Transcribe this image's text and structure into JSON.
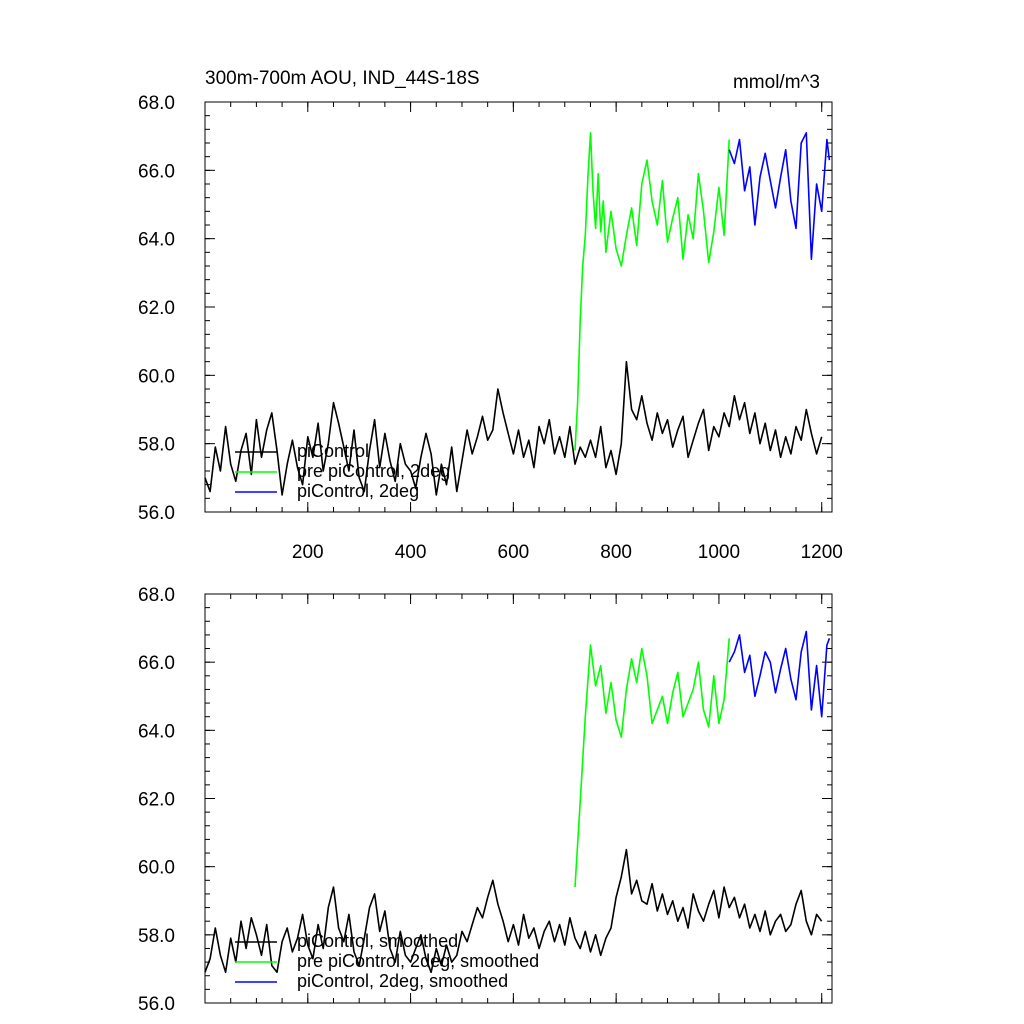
{
  "chart_data": [
    {
      "type": "line",
      "title": "300m-700m AOU, IND_44S-18S",
      "units": "mmol/m^3",
      "xlabel": "",
      "ylabel": "",
      "xlim": [
        0,
        1220
      ],
      "ylim": [
        56.0,
        68.0
      ],
      "xticks": [
        200,
        400,
        600,
        800,
        1000,
        1200
      ],
      "xtick_labels": [
        "200",
        "400",
        "600",
        "800",
        "1000",
        "1200"
      ],
      "yticks": [
        56.0,
        58.0,
        60.0,
        62.0,
        64.0,
        66.0,
        68.0
      ],
      "ytick_labels": [
        "56.0",
        "58.0",
        "60.0",
        "62.0",
        "64.0",
        "66.0",
        "68.0"
      ],
      "legend_position": "bottom-left",
      "grid": false,
      "series": [
        {
          "name": "piControl",
          "color": "#000000",
          "x": [
            0,
            10,
            20,
            30,
            40,
            50,
            60,
            70,
            80,
            90,
            100,
            110,
            120,
            130,
            140,
            150,
            160,
            170,
            180,
            190,
            200,
            210,
            220,
            230,
            240,
            250,
            260,
            270,
            280,
            290,
            300,
            310,
            320,
            330,
            340,
            350,
            360,
            370,
            380,
            390,
            400,
            410,
            420,
            430,
            440,
            450,
            460,
            470,
            480,
            490,
            500,
            510,
            520,
            530,
            540,
            550,
            560,
            570,
            580,
            590,
            600,
            610,
            620,
            630,
            640,
            650,
            660,
            670,
            680,
            690,
            700,
            710,
            720,
            730,
            740,
            750,
            760,
            770,
            780,
            790,
            800,
            810,
            820,
            830,
            840,
            850,
            860,
            870,
            880,
            890,
            900,
            910,
            920,
            930,
            940,
            950,
            960,
            970,
            980,
            990,
            1000,
            1010,
            1020,
            1030,
            1040,
            1050,
            1060,
            1070,
            1080,
            1090,
            1100,
            1110,
            1120,
            1130,
            1140,
            1150,
            1160,
            1170,
            1180,
            1190,
            1200
          ],
          "y": [
            57.0,
            56.6,
            57.9,
            57.2,
            58.5,
            57.4,
            56.9,
            57.8,
            58.3,
            57.1,
            58.7,
            57.6,
            58.4,
            58.9,
            57.8,
            56.5,
            57.4,
            58.1,
            57.3,
            56.8,
            58.2,
            57.6,
            58.6,
            57.2,
            58.0,
            59.2,
            58.6,
            57.9,
            57.2,
            58.4,
            57.0,
            56.6,
            57.8,
            58.7,
            57.3,
            58.3,
            57.5,
            56.9,
            58.0,
            57.4,
            57.2,
            56.7,
            57.6,
            58.3,
            57.7,
            56.5,
            57.4,
            56.8,
            57.9,
            56.6,
            57.5,
            58.4,
            57.7,
            58.2,
            58.8,
            58.1,
            58.4,
            59.6,
            58.9,
            58.3,
            57.7,
            58.4,
            57.6,
            58.1,
            57.3,
            58.5,
            58.0,
            58.7,
            57.7,
            58.2,
            57.6,
            58.5,
            57.4,
            57.9,
            57.6,
            58.1,
            57.6,
            58.5,
            57.3,
            57.8,
            57.1,
            58.0,
            60.4,
            59.0,
            58.7,
            59.4,
            58.6,
            58.1,
            58.9,
            58.3,
            58.7,
            57.9,
            58.4,
            58.8,
            57.6,
            58.1,
            58.6,
            59.0,
            57.8,
            58.5,
            58.2,
            58.9,
            58.5,
            59.4,
            58.7,
            59.2,
            58.3,
            58.9,
            58.0,
            58.6,
            57.8,
            58.4,
            57.6,
            58.2,
            57.7,
            58.5,
            58.1,
            59.0,
            58.3,
            57.7,
            58.2
          ]
        },
        {
          "name": "pre piControl, 2deg",
          "color": "#00ff00",
          "x": [
            720,
            725,
            730,
            735,
            740,
            745,
            750,
            755,
            760,
            765,
            770,
            775,
            780,
            790,
            800,
            810,
            820,
            830,
            840,
            850,
            860,
            870,
            880,
            890,
            900,
            910,
            920,
            930,
            940,
            950,
            960,
            970,
            980,
            990,
            1000,
            1010,
            1020
          ],
          "y": [
            57.8,
            59.2,
            61.6,
            63.2,
            64.1,
            65.8,
            67.1,
            65.4,
            64.3,
            65.9,
            64.2,
            65.1,
            63.6,
            64.8,
            63.7,
            63.2,
            64.1,
            64.9,
            63.8,
            65.6,
            66.3,
            65.1,
            64.4,
            65.7,
            63.9,
            64.6,
            65.2,
            63.4,
            64.7,
            64.0,
            65.9,
            64.8,
            63.3,
            64.2,
            65.5,
            64.1,
            66.9
          ]
        },
        {
          "name": "piControl, 2deg",
          "color": "#0000ff",
          "x": [
            1020,
            1030,
            1040,
            1050,
            1060,
            1070,
            1080,
            1090,
            1100,
            1110,
            1120,
            1130,
            1140,
            1150,
            1160,
            1170,
            1180,
            1190,
            1200,
            1210,
            1215
          ],
          "y": [
            66.6,
            66.2,
            66.9,
            65.4,
            66.1,
            64.4,
            65.8,
            66.5,
            65.7,
            64.9,
            65.8,
            66.6,
            65.1,
            64.3,
            66.8,
            67.1,
            63.4,
            65.6,
            64.8,
            66.9,
            66.3
          ]
        }
      ]
    },
    {
      "type": "line",
      "title": "",
      "xlabel": "",
      "ylabel": "",
      "xlim": [
        0,
        1220
      ],
      "ylim": [
        56.0,
        68.0
      ],
      "xticks": [
        200,
        400,
        600,
        800,
        1000,
        1200
      ],
      "yticks": [
        56.0,
        58.0,
        60.0,
        62.0,
        64.0,
        66.0,
        68.0
      ],
      "ytick_labels": [
        "56.0",
        "58.0",
        "60.0",
        "62.0",
        "64.0",
        "66.0",
        "68.0"
      ],
      "legend_position": "bottom-left",
      "grid": false,
      "series": [
        {
          "name": "piControl, smoothed",
          "color": "#000000",
          "x": [
            0,
            10,
            20,
            30,
            40,
            50,
            60,
            70,
            80,
            90,
            100,
            110,
            120,
            130,
            140,
            150,
            160,
            170,
            180,
            190,
            200,
            210,
            220,
            230,
            240,
            250,
            260,
            270,
            280,
            290,
            300,
            310,
            320,
            330,
            340,
            350,
            360,
            370,
            380,
            390,
            400,
            410,
            420,
            430,
            440,
            450,
            460,
            470,
            480,
            490,
            500,
            510,
            520,
            530,
            540,
            550,
            560,
            570,
            580,
            590,
            600,
            610,
            620,
            630,
            640,
            650,
            660,
            670,
            680,
            690,
            700,
            710,
            720,
            730,
            740,
            750,
            760,
            770,
            780,
            790,
            800,
            810,
            820,
            830,
            840,
            850,
            860,
            870,
            880,
            890,
            900,
            910,
            920,
            930,
            940,
            950,
            960,
            970,
            980,
            990,
            1000,
            1010,
            1020,
            1030,
            1040,
            1050,
            1060,
            1070,
            1080,
            1090,
            1100,
            1110,
            1120,
            1130,
            1140,
            1150,
            1160,
            1170,
            1180,
            1190,
            1200
          ],
          "y": [
            56.9,
            57.3,
            58.2,
            57.4,
            56.9,
            57.9,
            57.2,
            58.4,
            57.6,
            58.5,
            58.0,
            57.4,
            58.3,
            57.1,
            56.9,
            57.8,
            58.2,
            57.5,
            57.9,
            58.6,
            57.7,
            57.3,
            58.3,
            57.6,
            58.8,
            59.4,
            58.2,
            57.8,
            58.6,
            57.5,
            57.1,
            57.9,
            58.8,
            59.2,
            58.1,
            58.7,
            57.6,
            57.2,
            58.1,
            57.4,
            57.2,
            57.6,
            58.0,
            57.3,
            56.9,
            57.6,
            57.1,
            57.7,
            57.2,
            57.4,
            58.1,
            57.8,
            58.3,
            58.8,
            58.5,
            59.1,
            59.6,
            58.9,
            58.4,
            57.8,
            58.3,
            57.7,
            58.6,
            57.9,
            58.2,
            57.6,
            58.1,
            58.4,
            57.8,
            58.3,
            57.7,
            58.5,
            57.9,
            57.6,
            58.1,
            57.5,
            58.0,
            57.4,
            57.9,
            58.2,
            59.1,
            59.7,
            60.5,
            59.2,
            59.6,
            59.0,
            58.9,
            59.5,
            58.7,
            59.2,
            58.6,
            59.0,
            58.4,
            58.8,
            58.2,
            59.2,
            58.7,
            58.4,
            58.9,
            59.3,
            58.5,
            59.4,
            58.8,
            59.1,
            58.5,
            58.9,
            58.2,
            58.6,
            58.1,
            58.7,
            58.0,
            58.4,
            58.6,
            58.1,
            58.3,
            58.9,
            59.3,
            58.4,
            58.0,
            58.6,
            58.4
          ]
        },
        {
          "name": "pre piControl, 2deg, smoothed",
          "color": "#00ff00",
          "x": [
            720,
            730,
            740,
            750,
            760,
            770,
            780,
            790,
            800,
            810,
            820,
            830,
            840,
            850,
            860,
            870,
            880,
            890,
            900,
            910,
            920,
            930,
            940,
            950,
            960,
            970,
            980,
            990,
            1000,
            1010,
            1020
          ],
          "y": [
            59.4,
            61.9,
            64.4,
            66.5,
            65.3,
            65.9,
            64.5,
            65.4,
            64.3,
            63.8,
            65.2,
            66.1,
            65.4,
            66.4,
            65.6,
            64.2,
            64.6,
            65.0,
            64.2,
            65.1,
            65.7,
            64.4,
            64.8,
            65.2,
            66.0,
            64.6,
            64.1,
            65.6,
            64.2,
            64.9,
            66.7
          ]
        },
        {
          "name": "piControl, 2deg, smoothed",
          "color": "#0000ff",
          "x": [
            1020,
            1030,
            1040,
            1050,
            1060,
            1070,
            1080,
            1090,
            1100,
            1110,
            1120,
            1130,
            1140,
            1150,
            1160,
            1170,
            1180,
            1190,
            1200,
            1210,
            1215
          ],
          "y": [
            66.0,
            66.3,
            66.8,
            65.7,
            66.2,
            65.0,
            65.6,
            66.3,
            66.0,
            65.1,
            65.8,
            66.4,
            65.5,
            64.9,
            66.3,
            66.9,
            64.6,
            65.9,
            64.4,
            66.5,
            66.7
          ]
        }
      ]
    }
  ]
}
